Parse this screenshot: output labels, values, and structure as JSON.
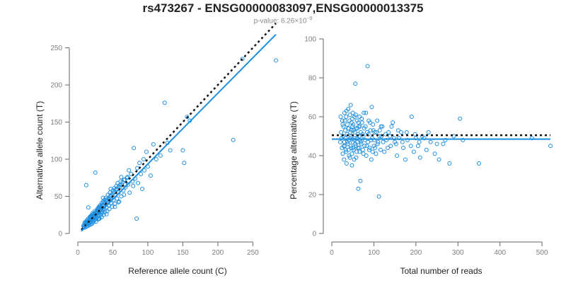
{
  "chart_data": [
    {
      "type": "scatter",
      "title": "rs473267 - ENSG00000083097,ENSG00000013375",
      "subtitle_prefix": "p-value: 6.26×10",
      "subtitle_exp": "−9",
      "xlabel": "Reference allele count (C)",
      "ylabel": "Alternative allele count (T)",
      "xlim": [
        0,
        285
      ],
      "ylim": [
        0,
        262
      ],
      "xticks": [
        0,
        50,
        100,
        150,
        200,
        250
      ],
      "yticks": [
        0,
        50,
        100,
        150,
        200,
        250
      ],
      "grid": false,
      "colors": {
        "points": "#1f8fe0",
        "fit_line": "#1f8fe0",
        "reference_line": "#111111"
      },
      "fit_line": {
        "x": [
          5,
          283
        ],
        "y": [
          3,
          268
        ]
      },
      "reference_line": {
        "x": [
          5,
          283
        ],
        "y": [
          5,
          283
        ]
      },
      "points": [
        [
          8,
          10
        ],
        [
          9,
          12
        ],
        [
          10,
          11
        ],
        [
          10,
          8
        ],
        [
          11,
          14
        ],
        [
          12,
          9
        ],
        [
          12,
          16
        ],
        [
          13,
          12
        ],
        [
          13,
          18
        ],
        [
          14,
          10
        ],
        [
          14,
          15
        ],
        [
          15,
          13
        ],
        [
          15,
          20
        ],
        [
          16,
          11
        ],
        [
          16,
          17
        ],
        [
          17,
          14
        ],
        [
          17,
          22
        ],
        [
          18,
          12
        ],
        [
          18,
          19
        ],
        [
          19,
          16
        ],
        [
          19,
          24
        ],
        [
          20,
          13
        ],
        [
          20,
          18
        ],
        [
          21,
          21
        ],
        [
          21,
          27
        ],
        [
          22,
          15
        ],
        [
          22,
          20
        ],
        [
          23,
          25
        ],
        [
          23,
          17
        ],
        [
          24,
          22
        ],
        [
          24,
          30
        ],
        [
          25,
          19
        ],
        [
          25,
          26
        ],
        [
          26,
          23
        ],
        [
          26,
          16
        ],
        [
          27,
          28
        ],
        [
          27,
          21
        ],
        [
          28,
          33
        ],
        [
          28,
          25
        ],
        [
          29,
          19
        ],
        [
          29,
          30
        ],
        [
          30,
          24
        ],
        [
          30,
          36
        ],
        [
          31,
          27
        ],
        [
          31,
          20
        ],
        [
          32,
          32
        ],
        [
          32,
          38
        ],
        [
          33,
          25
        ],
        [
          33,
          29
        ],
        [
          34,
          41
        ],
        [
          34,
          22
        ],
        [
          35,
          34
        ],
        [
          35,
          28
        ],
        [
          36,
          43
        ],
        [
          36,
          31
        ],
        [
          37,
          25
        ],
        [
          37,
          37
        ],
        [
          38,
          45
        ],
        [
          38,
          33
        ],
        [
          39,
          29
        ],
        [
          40,
          40
        ],
        [
          40,
          48
        ],
        [
          41,
          35
        ],
        [
          42,
          30
        ],
        [
          42,
          44
        ],
        [
          43,
          52
        ],
        [
          44,
          38
        ],
        [
          45,
          46
        ],
        [
          45,
          33
        ],
        [
          46,
          55
        ],
        [
          47,
          41
        ],
        [
          48,
          50
        ],
        [
          49,
          36
        ],
        [
          50,
          58
        ],
        [
          51,
          45
        ],
        [
          52,
          61
        ],
        [
          53,
          40
        ],
        [
          54,
          52
        ],
        [
          55,
          64
        ],
        [
          56,
          47
        ],
        [
          57,
          68
        ],
        [
          58,
          55
        ],
        [
          59,
          43
        ],
        [
          60,
          62
        ],
        [
          61,
          70
        ],
        [
          62,
          50
        ],
        [
          63,
          66
        ],
        [
          65,
          58
        ],
        [
          66,
          72
        ],
        [
          68,
          62
        ],
        [
          70,
          75
        ],
        [
          72,
          66
        ],
        [
          74,
          55
        ],
        [
          76,
          80
        ],
        [
          78,
          70
        ],
        [
          80,
          115
        ],
        [
          82,
          74
        ],
        [
          84,
          20
        ],
        [
          85,
          88
        ],
        [
          88,
          95
        ],
        [
          90,
          80
        ],
        [
          92,
          60
        ],
        [
          95,
          85
        ],
        [
          98,
          110
        ],
        [
          100,
          90
        ],
        [
          104,
          78
        ],
        [
          108,
          120
        ],
        [
          112,
          100
        ],
        [
          118,
          105
        ],
        [
          124,
          176
        ],
        [
          128,
          122
        ],
        [
          132,
          112
        ],
        [
          150,
          112
        ],
        [
          152,
          95
        ],
        [
          156,
          157
        ],
        [
          160,
          152
        ],
        [
          222,
          126
        ],
        [
          235,
          235
        ],
        [
          283,
          233
        ],
        [
          11,
          13
        ],
        [
          12,
          15
        ],
        [
          13,
          14
        ],
        [
          14,
          12
        ],
        [
          15,
          17
        ],
        [
          16,
          15
        ],
        [
          17,
          19
        ],
        [
          18,
          21
        ],
        [
          19,
          22
        ],
        [
          20,
          23
        ],
        [
          21,
          24
        ],
        [
          22,
          26
        ],
        [
          23,
          21
        ],
        [
          24,
          27
        ],
        [
          25,
          28
        ],
        [
          26,
          29
        ],
        [
          27,
          30
        ],
        [
          28,
          31
        ],
        [
          29,
          34
        ],
        [
          30,
          33
        ],
        [
          31,
          35
        ],
        [
          32,
          36
        ],
        [
          33,
          35
        ],
        [
          34,
          37
        ],
        [
          35,
          39
        ],
        [
          36,
          38
        ],
        [
          38,
          42
        ],
        [
          40,
          44
        ],
        [
          42,
          46
        ],
        [
          44,
          47
        ],
        [
          46,
          50
        ],
        [
          48,
          52
        ],
        [
          50,
          54
        ],
        [
          52,
          56
        ],
        [
          54,
          59
        ],
        [
          56,
          60
        ],
        [
          58,
          63
        ],
        [
          60,
          65
        ],
        [
          64,
          69
        ],
        [
          67,
          72
        ],
        [
          71,
          76
        ],
        [
          10,
          15
        ],
        [
          9,
          9
        ],
        [
          18,
          23
        ],
        [
          20,
          15
        ],
        [
          22,
          24
        ],
        [
          15,
          35
        ],
        [
          12,
          65
        ],
        [
          25,
          82
        ],
        [
          30,
          20
        ],
        [
          36,
          48
        ],
        [
          41,
          26
        ],
        [
          47,
          60
        ],
        [
          53,
          36
        ],
        [
          58,
          42
        ],
        [
          62,
          76
        ],
        [
          66,
          52
        ],
        [
          73,
          85
        ],
        [
          79,
          64
        ],
        [
          86,
          68
        ],
        [
          94,
          100
        ]
      ]
    },
    {
      "type": "scatter",
      "xlabel": "Total number of reads",
      "ylabel": "Percentage alternative (T)",
      "xlim": [
        0,
        520
      ],
      "ylim": [
        0,
        100
      ],
      "xticks": [
        0,
        100,
        200,
        300,
        400,
        500
      ],
      "yticks": [
        0,
        20,
        40,
        60,
        80,
        100
      ],
      "grid": false,
      "fit_line": {
        "x": [
          0,
          520
        ],
        "y": [
          48.5,
          48.5
        ]
      },
      "reference_line": {
        "x": [
          0,
          520
        ],
        "y": [
          50.5,
          50.5
        ]
      },
      "points": [
        [
          20,
          47
        ],
        [
          22,
          52
        ],
        [
          24,
          44
        ],
        [
          25,
          58
        ],
        [
          26,
          41
        ],
        [
          27,
          50
        ],
        [
          28,
          55
        ],
        [
          29,
          38
        ],
        [
          30,
          62
        ],
        [
          30,
          47
        ],
        [
          31,
          45
        ],
        [
          32,
          53
        ],
        [
          33,
          49
        ],
        [
          34,
          60
        ],
        [
          34,
          42
        ],
        [
          35,
          36
        ],
        [
          36,
          51
        ],
        [
          37,
          56
        ],
        [
          38,
          46
        ],
        [
          39,
          64
        ],
        [
          40,
          43
        ],
        [
          40,
          54
        ],
        [
          41,
          48
        ],
        [
          42,
          58
        ],
        [
          43,
          39
        ],
        [
          44,
          52
        ],
        [
          45,
          66
        ],
        [
          45,
          45
        ],
        [
          46,
          50
        ],
        [
          47,
          57
        ],
        [
          48,
          41
        ],
        [
          49,
          55
        ],
        [
          50,
          47
        ],
        [
          50,
          62
        ],
        [
          51,
          44
        ],
        [
          52,
          53
        ],
        [
          53,
          38
        ],
        [
          54,
          60
        ],
        [
          55,
          49
        ],
        [
          56,
          77
        ],
        [
          57,
          45
        ],
        [
          58,
          54
        ],
        [
          59,
          42
        ],
        [
          60,
          58
        ],
        [
          61,
          47
        ],
        [
          62,
          51
        ],
        [
          63,
          23
        ],
        [
          64,
          55
        ],
        [
          65,
          44
        ],
        [
          66,
          60
        ],
        [
          67,
          48
        ],
        [
          68,
          27
        ],
        [
          69,
          52
        ],
        [
          70,
          46
        ],
        [
          72,
          57
        ],
        [
          74,
          43
        ],
        [
          75,
          50
        ],
        [
          76,
          62
        ],
        [
          78,
          45
        ],
        [
          80,
          55
        ],
        [
          82,
          40
        ],
        [
          84,
          52
        ],
        [
          85,
          86
        ],
        [
          86,
          47
        ],
        [
          88,
          58
        ],
        [
          90,
          44
        ],
        [
          92,
          53
        ],
        [
          94,
          38
        ],
        [
          96,
          49
        ],
        [
          98,
          56
        ],
        [
          100,
          45
        ],
        [
          102,
          52
        ],
        [
          105,
          41
        ],
        [
          108,
          58
        ],
        [
          110,
          47
        ],
        [
          112,
          19
        ],
        [
          114,
          53
        ],
        [
          116,
          43
        ],
        [
          118,
          50
        ],
        [
          120,
          55
        ],
        [
          125,
          42
        ],
        [
          130,
          48
        ],
        [
          135,
          52
        ],
        [
          140,
          45
        ],
        [
          145,
          57
        ],
        [
          150,
          47
        ],
        [
          155,
          40
        ],
        [
          160,
          49
        ],
        [
          165,
          52
        ],
        [
          170,
          44
        ],
        [
          175,
          38
        ],
        [
          180,
          48
        ],
        [
          190,
          60
        ],
        [
          195,
          42
        ],
        [
          200,
          49
        ],
        [
          205,
          45
        ],
        [
          210,
          39
        ],
        [
          215,
          50
        ],
        [
          225,
          43
        ],
        [
          235,
          47
        ],
        [
          245,
          41
        ],
        [
          255,
          38
        ],
        [
          265,
          46
        ],
        [
          280,
          36
        ],
        [
          305,
          59
        ],
        [
          312,
          48
        ],
        [
          350,
          36
        ],
        [
          476,
          49
        ],
        [
          520,
          45
        ],
        [
          21,
          60
        ],
        [
          23,
          49
        ],
        [
          26,
          56
        ],
        [
          28,
          45
        ],
        [
          31,
          58
        ],
        [
          33,
          43
        ],
        [
          35,
          63
        ],
        [
          37,
          47
        ],
        [
          39,
          54
        ],
        [
          41,
          40
        ],
        [
          43,
          61
        ],
        [
          44,
          49
        ],
        [
          46,
          44
        ],
        [
          47,
          53
        ],
        [
          48,
          35
        ],
        [
          49,
          59
        ],
        [
          51,
          56
        ],
        [
          52,
          43
        ],
        [
          53,
          48
        ],
        [
          55,
          52
        ],
        [
          56,
          46
        ],
        [
          57,
          61
        ],
        [
          58,
          39
        ],
        [
          60,
          49
        ],
        [
          61,
          54
        ],
        [
          62,
          44
        ],
        [
          63,
          57
        ],
        [
          65,
          50
        ],
        [
          66,
          42
        ],
        [
          67,
          55
        ],
        [
          69,
          47
        ],
        [
          71,
          59
        ],
        [
          73,
          51
        ],
        [
          75,
          41
        ],
        [
          77,
          54
        ],
        [
          79,
          48
        ],
        [
          81,
          62
        ],
        [
          83,
          45
        ],
        [
          87,
          51
        ],
        [
          89,
          43
        ],
        [
          91,
          57
        ],
        [
          93,
          48
        ],
        [
          95,
          65
        ],
        [
          97,
          42
        ],
        [
          99,
          53
        ],
        [
          101,
          48
        ],
        [
          103,
          44
        ],
        [
          106,
          52
        ],
        [
          109,
          46
        ],
        [
          113,
          50
        ],
        [
          117,
          55
        ],
        [
          122,
          47
        ],
        [
          128,
          51
        ],
        [
          133,
          44
        ],
        [
          138,
          50
        ],
        [
          142,
          55
        ],
        [
          148,
          49
        ],
        [
          153,
          46
        ],
        [
          158,
          53
        ],
        [
          168,
          47
        ],
        [
          178,
          52
        ],
        [
          188,
          45
        ],
        [
          198,
          51
        ],
        [
          208,
          47
        ],
        [
          220,
          49
        ],
        [
          230,
          52
        ],
        [
          250,
          46
        ],
        [
          270,
          48
        ],
        [
          290,
          50
        ]
      ]
    }
  ]
}
